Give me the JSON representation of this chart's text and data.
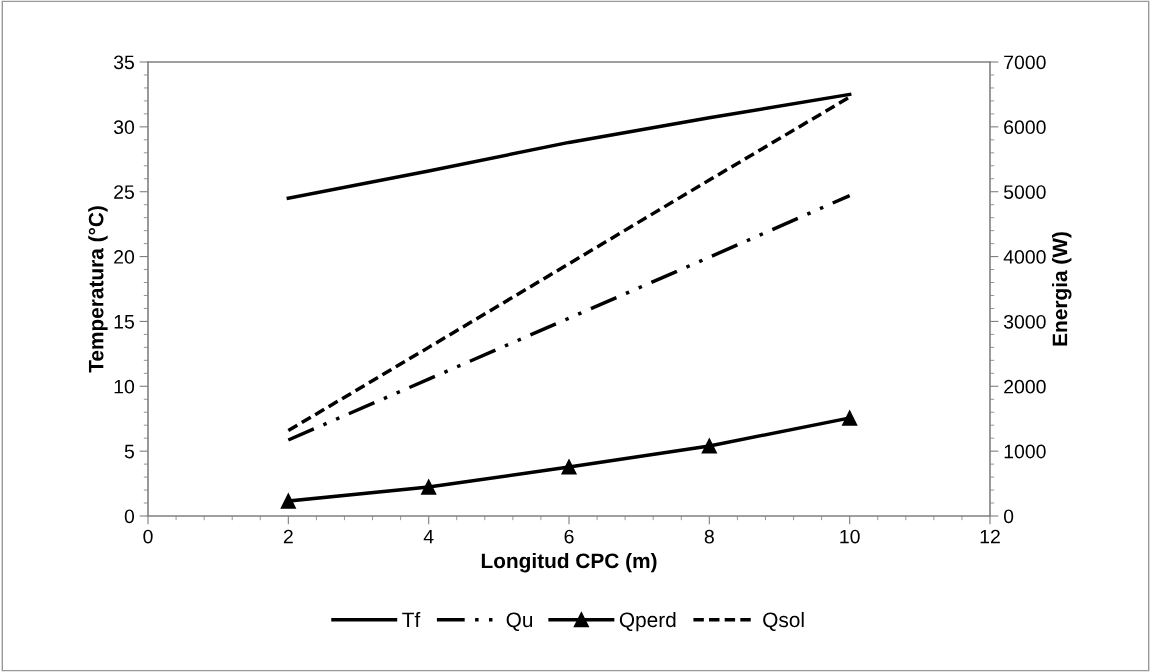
{
  "chart_data": {
    "type": "line",
    "xlabel": "Longitud CPC (m)",
    "ylabel": "Temperatura (°C)",
    "y2label": "Energia (W)",
    "x": [
      2,
      4,
      6,
      8,
      10
    ],
    "series": [
      {
        "name": "Tf",
        "color": "#000000",
        "line_style": "solid",
        "marker": "none",
        "values": [
          24.5,
          26.6,
          28.8,
          30.7,
          32.5
        ]
      },
      {
        "name": "Qu",
        "color": "#000000",
        "line_style": "dashdot",
        "marker": "none",
        "axis": "y2",
        "values": [
          1172,
          2110,
          3050,
          3990,
          4940
        ]
      },
      {
        "name": "Qperd",
        "color": "#000000",
        "line_style": "solid",
        "marker": "triangle",
        "axis": "y2",
        "values": [
          231,
          447,
          756,
          1080,
          1511
        ]
      },
      {
        "name": "Qsol",
        "color": "#000000",
        "line_style": "dashed",
        "marker": "none",
        "axis": "y2",
        "values": [
          1317,
          2600,
          3890,
          5180,
          6460
        ]
      }
    ],
    "xlim": [
      0,
      12
    ],
    "xticks": [
      0,
      2,
      4,
      6,
      8,
      10,
      12
    ],
    "ylim": [
      0,
      35
    ],
    "yticks": [
      0,
      5,
      10,
      15,
      20,
      25,
      30,
      35
    ],
    "y2lim": [
      0,
      7000
    ],
    "y2ticks": [
      0,
      1000,
      2000,
      3000,
      4000,
      5000,
      6000,
      7000
    ],
    "grid": false,
    "legend": "bottom"
  }
}
